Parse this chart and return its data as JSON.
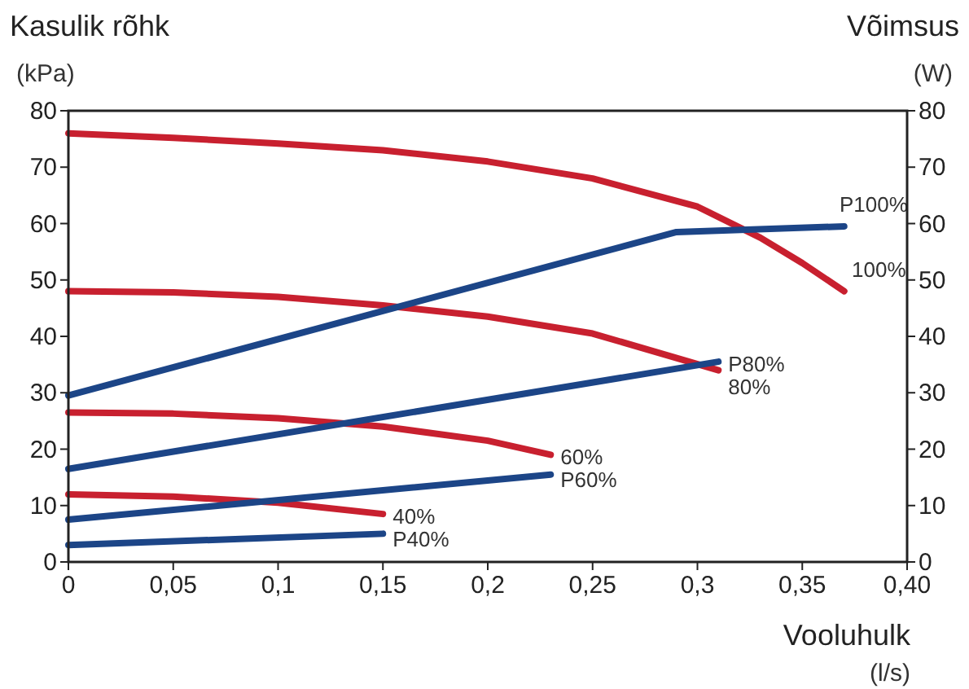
{
  "chart_data": {
    "type": "line",
    "xlabel": "Vooluhulk\n(l/s)",
    "ylabel": "Kasulik rõhk\n(kPa)",
    "y2label": "Võimsus\n(W)",
    "xlim": [
      0,
      0.4
    ],
    "xticks": [
      {
        "value": 0,
        "label": "0"
      },
      {
        "value": 0.05,
        "label": "0,05"
      },
      {
        "value": 0.1,
        "label": "0,1"
      },
      {
        "value": 0.15,
        "label": "0,15"
      },
      {
        "value": 0.2,
        "label": "0,2"
      },
      {
        "value": 0.25,
        "label": "0,25"
      },
      {
        "value": 0.3,
        "label": "0,3"
      },
      {
        "value": 0.35,
        "label": "0,35"
      },
      {
        "value": 0.4,
        "label": "0,40"
      }
    ],
    "ylim": [
      0,
      80
    ],
    "yticks": [
      0,
      10,
      20,
      30,
      40,
      50,
      60,
      70,
      80
    ],
    "y2lim": [
      0,
      80
    ],
    "y2ticks": [
      0,
      10,
      20,
      30,
      40,
      50,
      60,
      70,
      80
    ],
    "grid": false,
    "legend": false,
    "marker": "none",
    "line_style": "solid",
    "series": [
      {
        "name": "100%",
        "color": "#c8202f",
        "x": [
          0,
          0.05,
          0.1,
          0.15,
          0.2,
          0.25,
          0.3,
          0.33,
          0.35,
          0.37
        ],
        "values": [
          76,
          75.2,
          74.2,
          73,
          71,
          68,
          63,
          57.5,
          53,
          48
        ]
      },
      {
        "name": "80%",
        "color": "#c8202f",
        "x": [
          0,
          0.05,
          0.1,
          0.15,
          0.2,
          0.25,
          0.31
        ],
        "values": [
          48,
          47.8,
          47,
          45.5,
          43.5,
          40.5,
          34
        ]
      },
      {
        "name": "60%",
        "color": "#c8202f",
        "x": [
          0,
          0.05,
          0.1,
          0.15,
          0.2,
          0.23
        ],
        "values": [
          26.5,
          26.3,
          25.5,
          24,
          21.5,
          19
        ]
      },
      {
        "name": "40%",
        "color": "#c8202f",
        "x": [
          0,
          0.05,
          0.1,
          0.15
        ],
        "values": [
          12,
          11.6,
          10.5,
          8.5
        ]
      },
      {
        "name": "P100%",
        "color": "#1c4587",
        "axis": "y2",
        "x": [
          0,
          0.29,
          0.37
        ],
        "values": [
          29.5,
          58.5,
          59.5
        ]
      },
      {
        "name": "P80%",
        "color": "#1c4587",
        "axis": "y2",
        "x": [
          0,
          0.31
        ],
        "values": [
          16.5,
          35.5
        ]
      },
      {
        "name": "P60%",
        "color": "#1c4587",
        "axis": "y2",
        "x": [
          0,
          0.23
        ],
        "values": [
          7.5,
          15.5
        ]
      },
      {
        "name": "P40%",
        "color": "#1c4587",
        "axis": "y2",
        "x": [
          0,
          0.15
        ],
        "values": [
          3,
          5
        ]
      }
    ]
  }
}
